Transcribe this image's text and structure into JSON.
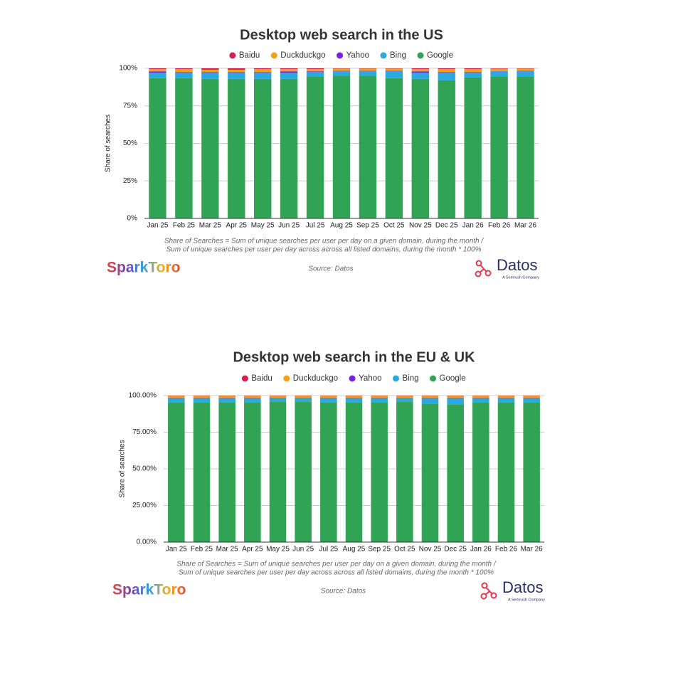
{
  "chart_data": [
    {
      "type": "stacked_bar",
      "title": "Desktop web search in the US",
      "y_label": "Share of searches",
      "categories": [
        "Jan 25",
        "Feb 25",
        "Mar 25",
        "Apr 25",
        "May 25",
        "Jun 25",
        "Jul 25",
        "Aug 25",
        "Sep 25",
        "Oct 25",
        "Nov 25",
        "Dec 25",
        "Jan 26",
        "Feb 26",
        "Mar 26"
      ],
      "series": [
        {
          "name": "Baidu",
          "color": "#d6204f",
          "values": [
            0.5,
            0.5,
            1,
            1,
            0.5,
            0.5,
            0.5,
            0.2,
            0.2,
            0.2,
            0.5,
            0.5,
            0.5,
            0.3,
            0.2
          ]
        },
        {
          "name": "Duckduckgo",
          "color": "#f5a01a",
          "values": [
            1.5,
            2,
            1.5,
            1.5,
            2,
            1.5,
            1.5,
            1.5,
            1.5,
            1.5,
            1.5,
            2,
            2,
            1.5,
            1.5
          ]
        },
        {
          "name": "Yahoo",
          "color": "#7a1fe6",
          "values": [
            1,
            0.5,
            0.5,
            0.5,
            0.5,
            1,
            0.5,
            0.3,
            0.3,
            0.3,
            1,
            0.5,
            0.5,
            0.2,
            0.3
          ]
        },
        {
          "name": "Bing",
          "color": "#2aa8e0",
          "values": [
            3.5,
            3.5,
            4,
            4,
            4,
            4,
            3,
            3,
            3,
            4.5,
            4,
            5,
            3,
            3.5,
            3.5
          ]
        },
        {
          "name": "Google",
          "color": "#31a354",
          "values": [
            93.5,
            93.5,
            93,
            93,
            93,
            93,
            94.5,
            95,
            95,
            93.5,
            93,
            92,
            94,
            94.5,
            94.5
          ]
        }
      ],
      "ylim": [
        0,
        100
      ],
      "yticks": [
        {
          "value": 0,
          "label": "0%"
        },
        {
          "value": 25,
          "label": "25%"
        },
        {
          "value": 50,
          "label": "50%"
        },
        {
          "value": 75,
          "label": "75%"
        },
        {
          "value": 100,
          "label": "100%"
        }
      ],
      "grid": true,
      "footnote": [
        "Share of Searches = Sum of unique searches per user per day on a given domain, during the month /",
        "Sum of unique searches per user per day across across all listed domains, during the month * 100%"
      ],
      "source": "Source: Datos",
      "brand_left": "SparkToro",
      "brand_right": "Datos",
      "brand_right_sub": "A Semrush Company"
    },
    {
      "type": "stacked_bar",
      "title": "Desktop web search in the EU & UK",
      "y_label": "Share of searches",
      "categories": [
        "Jan 25",
        "Feb 25",
        "Mar 25",
        "Apr 25",
        "May 25",
        "Jun 25",
        "Jul 25",
        "Aug 25",
        "Sep 25",
        "Oct 25",
        "Nov 25",
        "Dec 25",
        "Jan 26",
        "Feb 26",
        "Mar 26"
      ],
      "series": [
        {
          "name": "Baidu",
          "color": "#d6204f",
          "values": [
            0.2,
            0.2,
            0.2,
            0.2,
            0.2,
            0.2,
            0.2,
            0.2,
            0.2,
            0.2,
            0.2,
            0.2,
            0.2,
            0.2,
            0.2
          ]
        },
        {
          "name": "Duckduckgo",
          "color": "#f5a01a",
          "values": [
            1.5,
            1.5,
            1.5,
            1.5,
            1.3,
            1.3,
            1.5,
            1.5,
            1.5,
            1.3,
            1.5,
            1.5,
            1.5,
            1.5,
            1.5
          ]
        },
        {
          "name": "Yahoo",
          "color": "#7a1fe6",
          "values": [
            0.3,
            0.3,
            0.3,
            0.3,
            0.3,
            0.3,
            0.3,
            0.3,
            0.3,
            0.3,
            0.3,
            0.3,
            0.3,
            0.3,
            0.3
          ]
        },
        {
          "name": "Bing",
          "color": "#2aa8e0",
          "values": [
            2.5,
            2.5,
            2.5,
            2.5,
            2.2,
            2.2,
            2.5,
            2.5,
            2.5,
            2.2,
            3.5,
            4,
            2.5,
            2.5,
            2.5
          ]
        },
        {
          "name": "Google",
          "color": "#31a354",
          "values": [
            95.5,
            95.5,
            95.5,
            95.5,
            96,
            96,
            95.5,
            95.5,
            95.5,
            96,
            94.5,
            94,
            95.5,
            95.5,
            95.5
          ]
        }
      ],
      "ylim": [
        0,
        100
      ],
      "yticks": [
        {
          "value": 0,
          "label": "0.00%"
        },
        {
          "value": 25,
          "label": "25.00%"
        },
        {
          "value": 50,
          "label": "50.00%"
        },
        {
          "value": 75,
          "label": "75.00%"
        },
        {
          "value": 100,
          "label": "100.00%"
        }
      ],
      "grid": true,
      "footnote": [
        "Share of Searches = Sum of unique searches per user per day on a given domain, during the month /",
        "Sum of unique searches per user per day across across all listed domains, during the month * 100%"
      ],
      "source": "Source: Datos",
      "brand_left": "SparkToro",
      "brand_right": "Datos",
      "brand_right_sub": "A Semrush Company"
    }
  ]
}
